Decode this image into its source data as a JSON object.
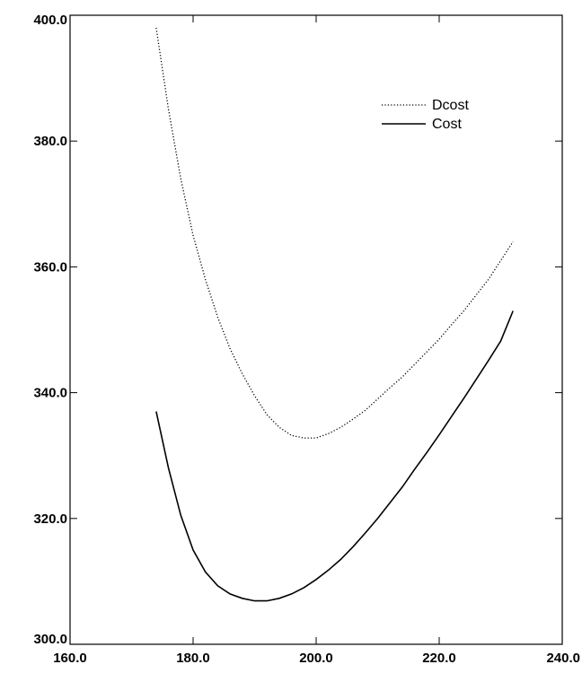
{
  "chart_data": {
    "type": "line",
    "title": "",
    "xlabel": "",
    "ylabel": "",
    "xlim": [
      160,
      240
    ],
    "ylim": [
      300,
      400
    ],
    "grid": false,
    "legend": "top-right",
    "x_ticks": [
      "160.0",
      "180.0",
      "200.0",
      "220.0",
      "240.0"
    ],
    "y_ticks": [
      "300.0",
      "320.0",
      "340.0",
      "360.0",
      "380.0",
      "400.0"
    ],
    "series": [
      {
        "name": "Dcost",
        "style": "dotted",
        "x": [
          174,
          176,
          178,
          180,
          182,
          184,
          186,
          188,
          190,
          192,
          194,
          196,
          198,
          200,
          202,
          204,
          206,
          208,
          210,
          212,
          214,
          216,
          218,
          220,
          222,
          224,
          226,
          228,
          230,
          232
        ],
        "y": [
          398,
          385,
          374,
          365,
          358,
          352,
          347,
          343,
          339.5,
          336.5,
          334.5,
          333.2,
          332.8,
          332.8,
          333.5,
          334.5,
          335.8,
          337.2,
          339,
          340.8,
          342.5,
          344.5,
          346.5,
          348.5,
          350.8,
          353,
          355.5,
          358,
          361,
          364
        ]
      },
      {
        "name": "Cost",
        "style": "solid",
        "x": [
          174,
          176,
          178,
          180,
          182,
          184,
          186,
          188,
          190,
          192,
          194,
          196,
          198,
          200,
          202,
          204,
          206,
          208,
          210,
          212,
          214,
          216,
          218,
          220,
          222,
          224,
          226,
          228,
          230,
          232
        ],
        "y": [
          337,
          328,
          320.5,
          315,
          311.5,
          309.3,
          308,
          307.3,
          306.9,
          306.9,
          307.3,
          308,
          309,
          310.3,
          311.8,
          313.5,
          315.5,
          317.7,
          320,
          322.5,
          325,
          327.8,
          330.5,
          333.3,
          336.2,
          339.1,
          342.1,
          345.1,
          348.2,
          353
        ]
      }
    ]
  }
}
